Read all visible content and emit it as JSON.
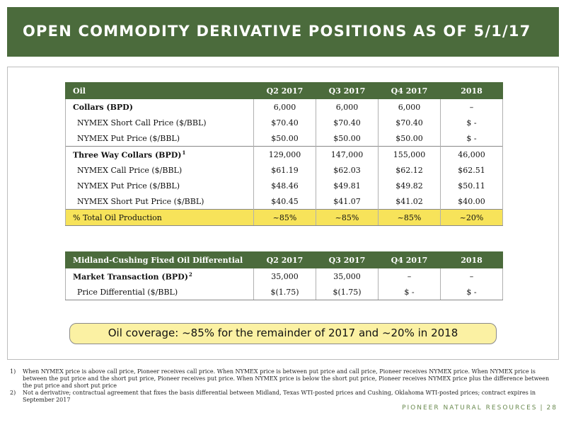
{
  "header": {
    "title": "OPEN COMMODITY DERIVATIVE POSITIONS AS OF 5/1/17"
  },
  "oil_table": {
    "headers": [
      "Oil",
      "Q2 2017",
      "Q3 2017",
      "Q4 2017",
      "2018"
    ],
    "rows": [
      {
        "label": "Collars (BPD)",
        "values": [
          "6,000",
          "6,000",
          "6,000",
          "–"
        ]
      },
      {
        "label": "NYMEX Short Call Price ($/BBL)",
        "values": [
          "$70.40",
          "$70.40",
          "$70.40",
          "$ -"
        ]
      },
      {
        "label": "NYMEX Put Price ($/BBL)",
        "values": [
          "$50.00",
          "$50.00",
          "$50.00",
          "$ -"
        ]
      },
      {
        "label": "Three Way Collars (BPD)",
        "footnote": "1",
        "values": [
          "129,000",
          "147,000",
          "155,000",
          "46,000"
        ]
      },
      {
        "label": "NYMEX Call Price ($/BBL)",
        "values": [
          "$61.19",
          "$62.03",
          "$62.12",
          "$62.51"
        ]
      },
      {
        "label": "NYMEX Put Price ($/BBL)",
        "values": [
          "$48.46",
          "$49.81",
          "$49.82",
          "$50.11"
        ]
      },
      {
        "label": "NYMEX Short Put Price ($/BBL)",
        "values": [
          "$40.45",
          "$41.07",
          "$41.02",
          "$40.00"
        ]
      },
      {
        "label": "% Total Oil Production",
        "values": [
          "~85%",
          "~85%",
          "~85%",
          "~20%"
        ]
      }
    ]
  },
  "diff_table": {
    "headers": [
      "Midland-Cushing Fixed Oil Differential",
      "Q2 2017",
      "Q3 2017",
      "Q4 2017",
      "2018"
    ],
    "rows": [
      {
        "label": "Market Transaction (BPD)",
        "footnote": "2",
        "values": [
          "35,000",
          "35,000",
          "–",
          "–"
        ]
      },
      {
        "label": "Price Differential ($/BBL)",
        "values": [
          "$(1.75)",
          "$(1.75)",
          "$ -",
          "$ -"
        ]
      }
    ]
  },
  "coverage": {
    "text": "Oil coverage: ~85% for the remainder of 2017 and ~20% in 2018"
  },
  "footnotes": [
    {
      "num": "1)",
      "text": "When NYMEX price is above call price, Pioneer receives call price. When NYMEX price is between put price and call price, Pioneer receives NYMEX price. When NYMEX price is between the put price and the short put price, Pioneer receives put price. When NYMEX price is below the short put price, Pioneer receives NYMEX price plus the difference between the put price and short put price"
    },
    {
      "num": "2)",
      "text": "Not a derivative; contractual agreement that fixes the basis differential between Midland, Texas WTI-posted prices and Cushing, Oklahoma WTI-posted prices; contract expires in September 2017"
    }
  ],
  "footer": {
    "brand": "PIONEER NATURAL RESOURCES",
    "separator": "|",
    "page": "28"
  },
  "colors": {
    "header_green": "#4b6b3c",
    "highlight_yellow": "#f7e35a",
    "coverage_bg": "#fbf1a3",
    "brand_green": "#6a8a4f"
  }
}
